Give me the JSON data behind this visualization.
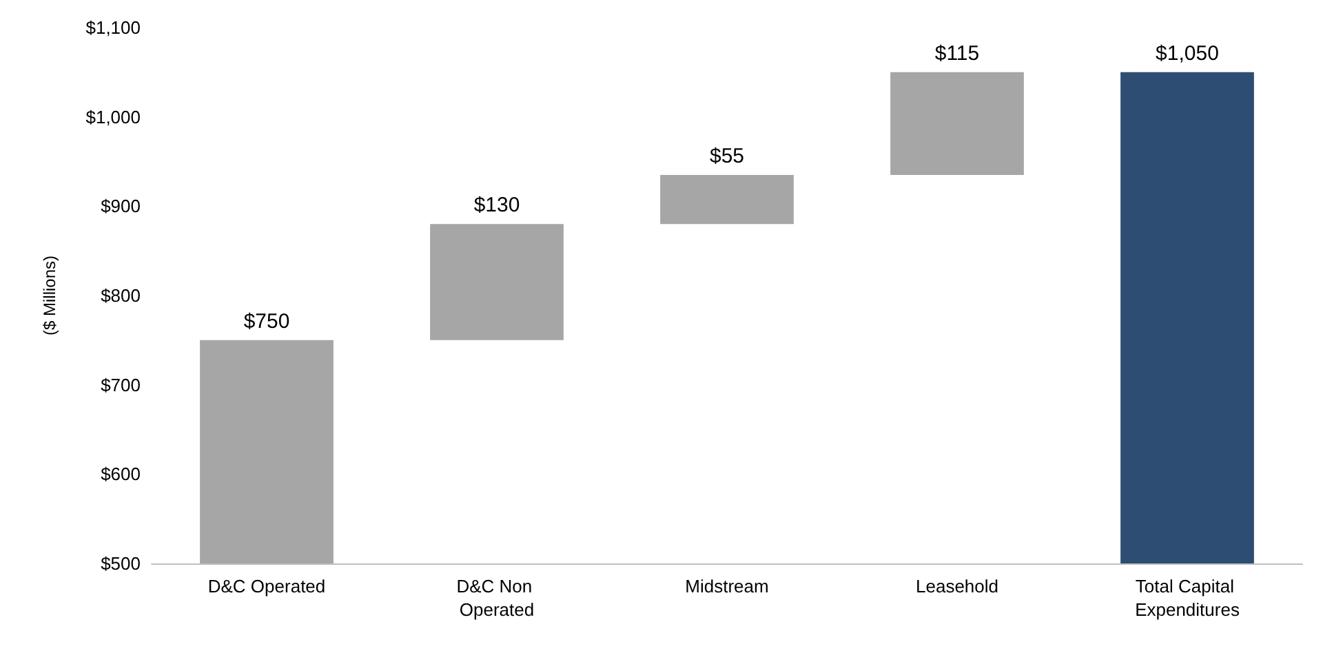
{
  "chart_data": {
    "type": "bar",
    "ylabel": "($ Millions)",
    "categories": [
      "D&C Operated",
      "D&C Non Operated",
      "Midstream",
      "Leasehold",
      "Total Capital Expenditures"
    ],
    "values": [
      750,
      130,
      55,
      115,
      1050
    ],
    "base": [
      null,
      750,
      880,
      935,
      null
    ],
    "colors": [
      "#a6a6a6",
      "#a6a6a6",
      "#a6a6a6",
      "#a6a6a6",
      "#2e4d73"
    ],
    "value_labels": [
      "$750",
      "$130",
      "$55",
      "$115",
      "$1,050"
    ],
    "ylim": [
      500,
      1100
    ],
    "yticks": [
      {
        "value": 500,
        "label": "$500"
      },
      {
        "value": 600,
        "label": "$600"
      },
      {
        "value": 700,
        "label": "$700"
      },
      {
        "value": 800,
        "label": "$800"
      },
      {
        "value": 900,
        "label": "$900"
      },
      {
        "value": 1000,
        "label": "$1,000"
      },
      {
        "value": 1100,
        "label": "$1,100"
      }
    ],
    "grid": false
  }
}
